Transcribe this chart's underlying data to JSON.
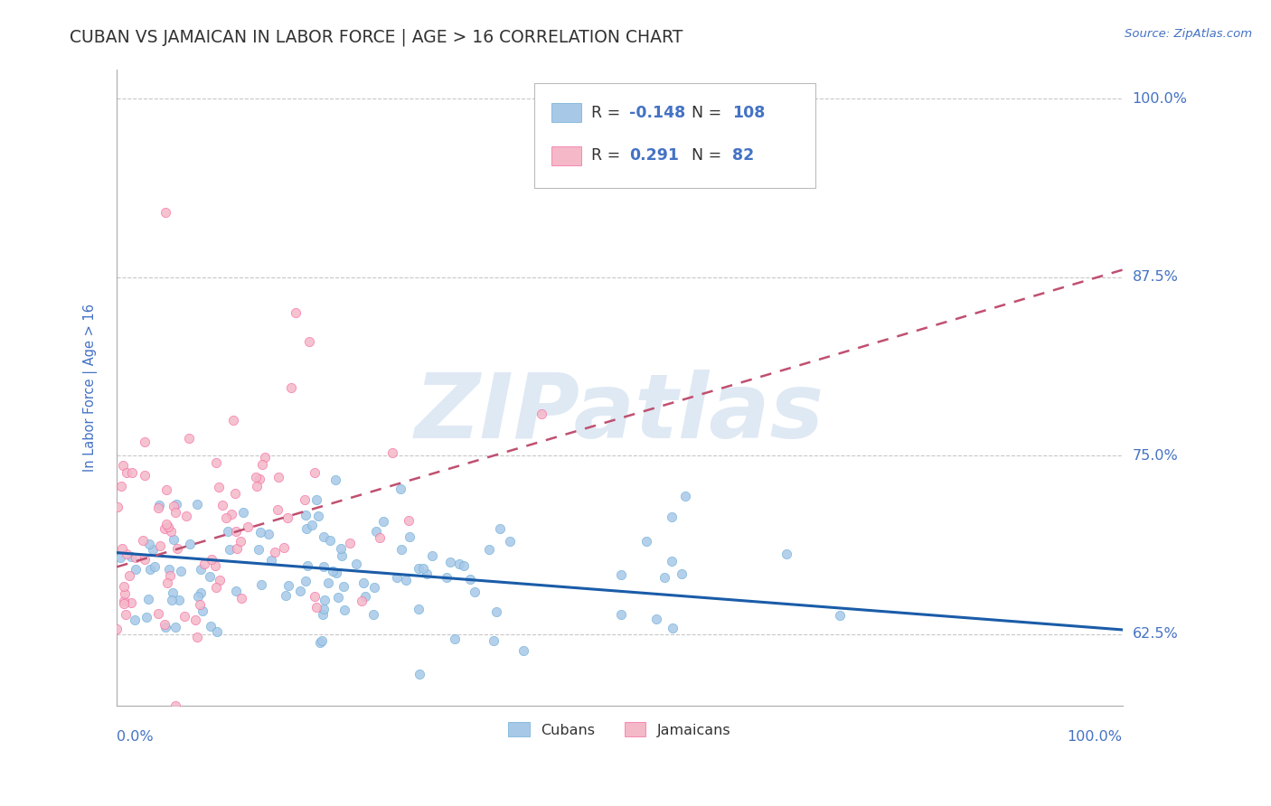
{
  "title": "CUBAN VS JAMAICAN IN LABOR FORCE | AGE > 16 CORRELATION CHART",
  "source_text": "Source: ZipAtlas.com",
  "ylabel": "In Labor Force | Age > 16",
  "xlim": [
    0.0,
    1.0
  ],
  "ylim": [
    0.575,
    1.02
  ],
  "yticks": [
    0.625,
    0.75,
    0.875,
    1.0
  ],
  "ytick_labels": [
    "62.5%",
    "75.0%",
    "87.5%",
    "100.0%"
  ],
  "xticks": [
    0.0,
    1.0
  ],
  "xtick_labels": [
    "0.0%",
    "100.0%"
  ],
  "cuban_color": "#a8c8e8",
  "cuban_edge_color": "#6baed6",
  "jamaican_color": "#f4b8c8",
  "jamaican_edge_color": "#f768a1",
  "cuban_line_color": "#1a5ca8",
  "jamaican_line_color": "#c05070",
  "cuban_R": -0.148,
  "cuban_N": 108,
  "jamaican_R": 0.291,
  "jamaican_N": 82,
  "cuban_line_y0": 0.682,
  "cuban_line_y1": 0.628,
  "jamaican_line_y0": 0.672,
  "jamaican_line_y1": 0.88,
  "watermark": "ZIPatlas",
  "background_color": "#ffffff",
  "grid_color": "#c8c8c8",
  "title_color": "#333333",
  "source_color": "#4472c4",
  "axis_label_color": "#4472c4",
  "tick_label_color": "#4472c4",
  "legend_box_color": "#4472c4",
  "seed": 12
}
